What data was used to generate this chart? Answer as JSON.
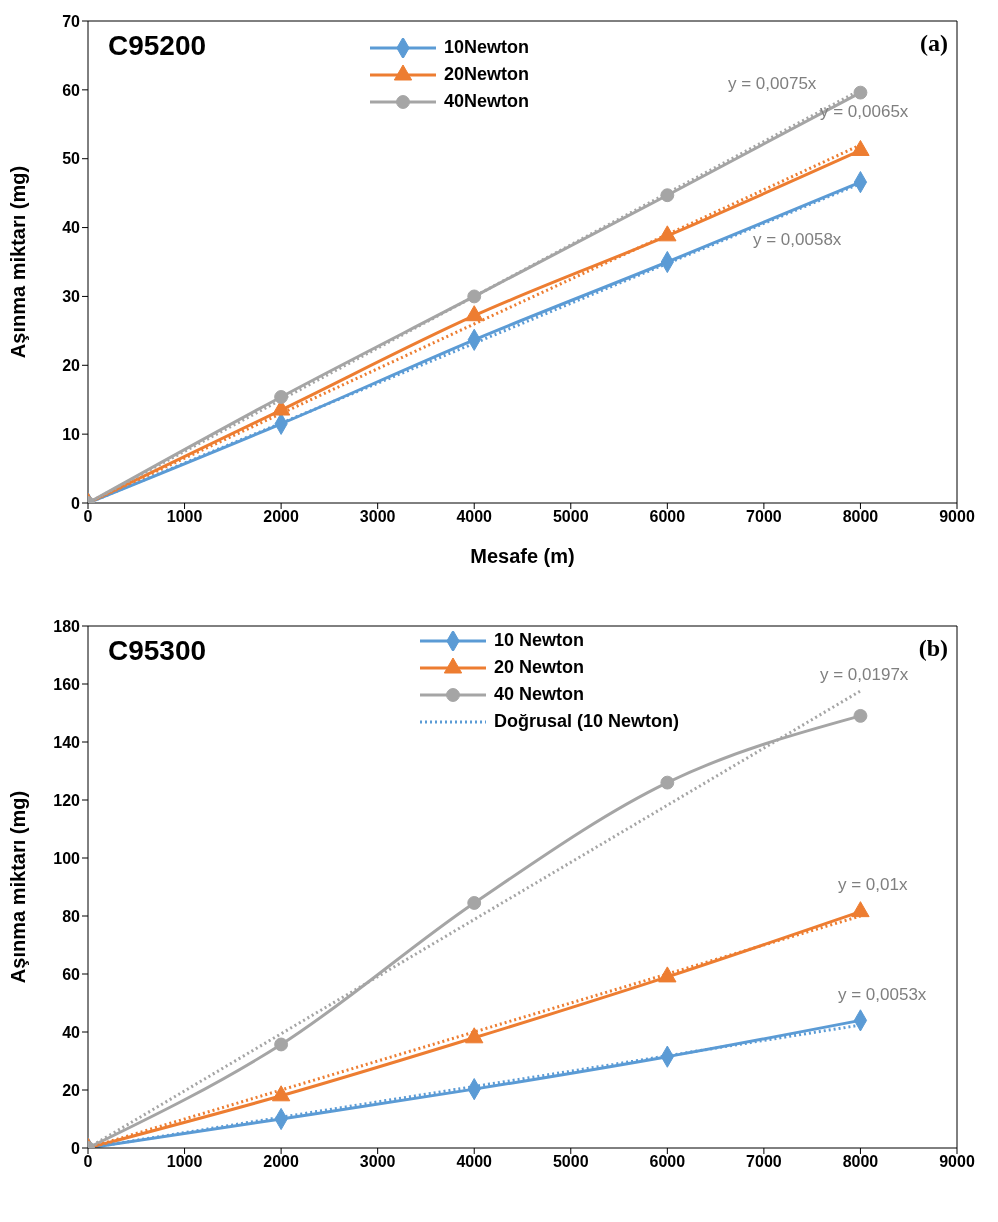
{
  "chart_data": [
    {
      "type": "line",
      "xlabel": "Mesafe (m)",
      "ylabel": "Aşınma miktarı (mg)",
      "x": [
        0,
        2000,
        4000,
        6000,
        8000
      ],
      "xlim": [
        0,
        9000
      ],
      "xticks": [
        0,
        1000,
        2000,
        3000,
        4000,
        5000,
        6000,
        7000,
        8000,
        9000
      ],
      "ylim": [
        0,
        70
      ],
      "yticks": [
        0,
        10,
        20,
        30,
        40,
        50,
        60,
        70
      ],
      "grid": false,
      "legend": "top",
      "series": [
        {
          "name": "10Newton",
          "color": "#5b9bd5",
          "marker": "diamond",
          "values": [
            0,
            11.5,
            23.7,
            35,
            46.6
          ]
        },
        {
          "name": "20Newton",
          "color": "#ed7d31",
          "marker": "triangle",
          "values": [
            0,
            13.5,
            27.2,
            38.8,
            51.2
          ]
        },
        {
          "name": "40Newton",
          "color": "#a5a5a5",
          "marker": "circle",
          "values": [
            0,
            15.4,
            30,
            44.7,
            59.6
          ]
        },
        {
          "color": "#5b9bd5",
          "marker": "none",
          "line_style": "dotted",
          "values": [
            0,
            11.6,
            23.2,
            34.8,
            46.4
          ]
        },
        {
          "color": "#ed7d31",
          "marker": "none",
          "line_style": "dotted",
          "values": [
            0,
            13,
            26,
            39,
            52
          ]
        },
        {
          "color": "#a5a5a5",
          "marker": "none",
          "line_style": "dotted",
          "values": [
            0,
            15,
            30,
            45,
            60
          ]
        }
      ],
      "annotations": [
        "C95200",
        "(a)",
        "y = 0,0075x",
        "y = 0,0065x",
        "y = 0,0058x"
      ]
    },
    {
      "type": "line",
      "ylabel": "Aşınma miktarı (mg)",
      "x": [
        0,
        2000,
        4000,
        6000,
        8000
      ],
      "xlim": [
        0,
        9000
      ],
      "xticks": [
        0,
        1000,
        2000,
        3000,
        4000,
        5000,
        6000,
        7000,
        8000,
        9000
      ],
      "ylim": [
        0,
        180
      ],
      "yticks": [
        0,
        20,
        40,
        60,
        80,
        100,
        120,
        140,
        160,
        180
      ],
      "grid": false,
      "legend": "top",
      "series": [
        {
          "name": "10 Newton",
          "color": "#5b9bd5",
          "marker": "diamond",
          "values": [
            0,
            10,
            20.3,
            31.5,
            44
          ]
        },
        {
          "name": "20 Newton",
          "color": "#ed7d31",
          "marker": "triangle",
          "values": [
            0,
            18,
            38,
            59,
            81.5
          ]
        },
        {
          "name": "40 Newton",
          "color": "#a5a5a5",
          "marker": "circle",
          "values": [
            0,
            35.7,
            84.5,
            126,
            149
          ]
        },
        {
          "name": "Doğrusal (10 Newton)",
          "color": "#5b9bd5",
          "marker": "none",
          "line_style": "dotted",
          "values": [
            0,
            10.6,
            21.2,
            31.8,
            42.4
          ]
        },
        {
          "color": "#ed7d31",
          "marker": "none",
          "line_style": "dotted",
          "values": [
            0,
            20,
            40,
            60,
            80
          ]
        },
        {
          "color": "#a5a5a5",
          "marker": "none",
          "line_style": "dotted",
          "values": [
            0,
            39.4,
            78.8,
            118.2,
            157.6
          ]
        }
      ],
      "annotations": [
        "C95300",
        "(b)",
        "y = 0,0197x",
        "y = 0,01x",
        "y = 0,0053x"
      ]
    }
  ]
}
